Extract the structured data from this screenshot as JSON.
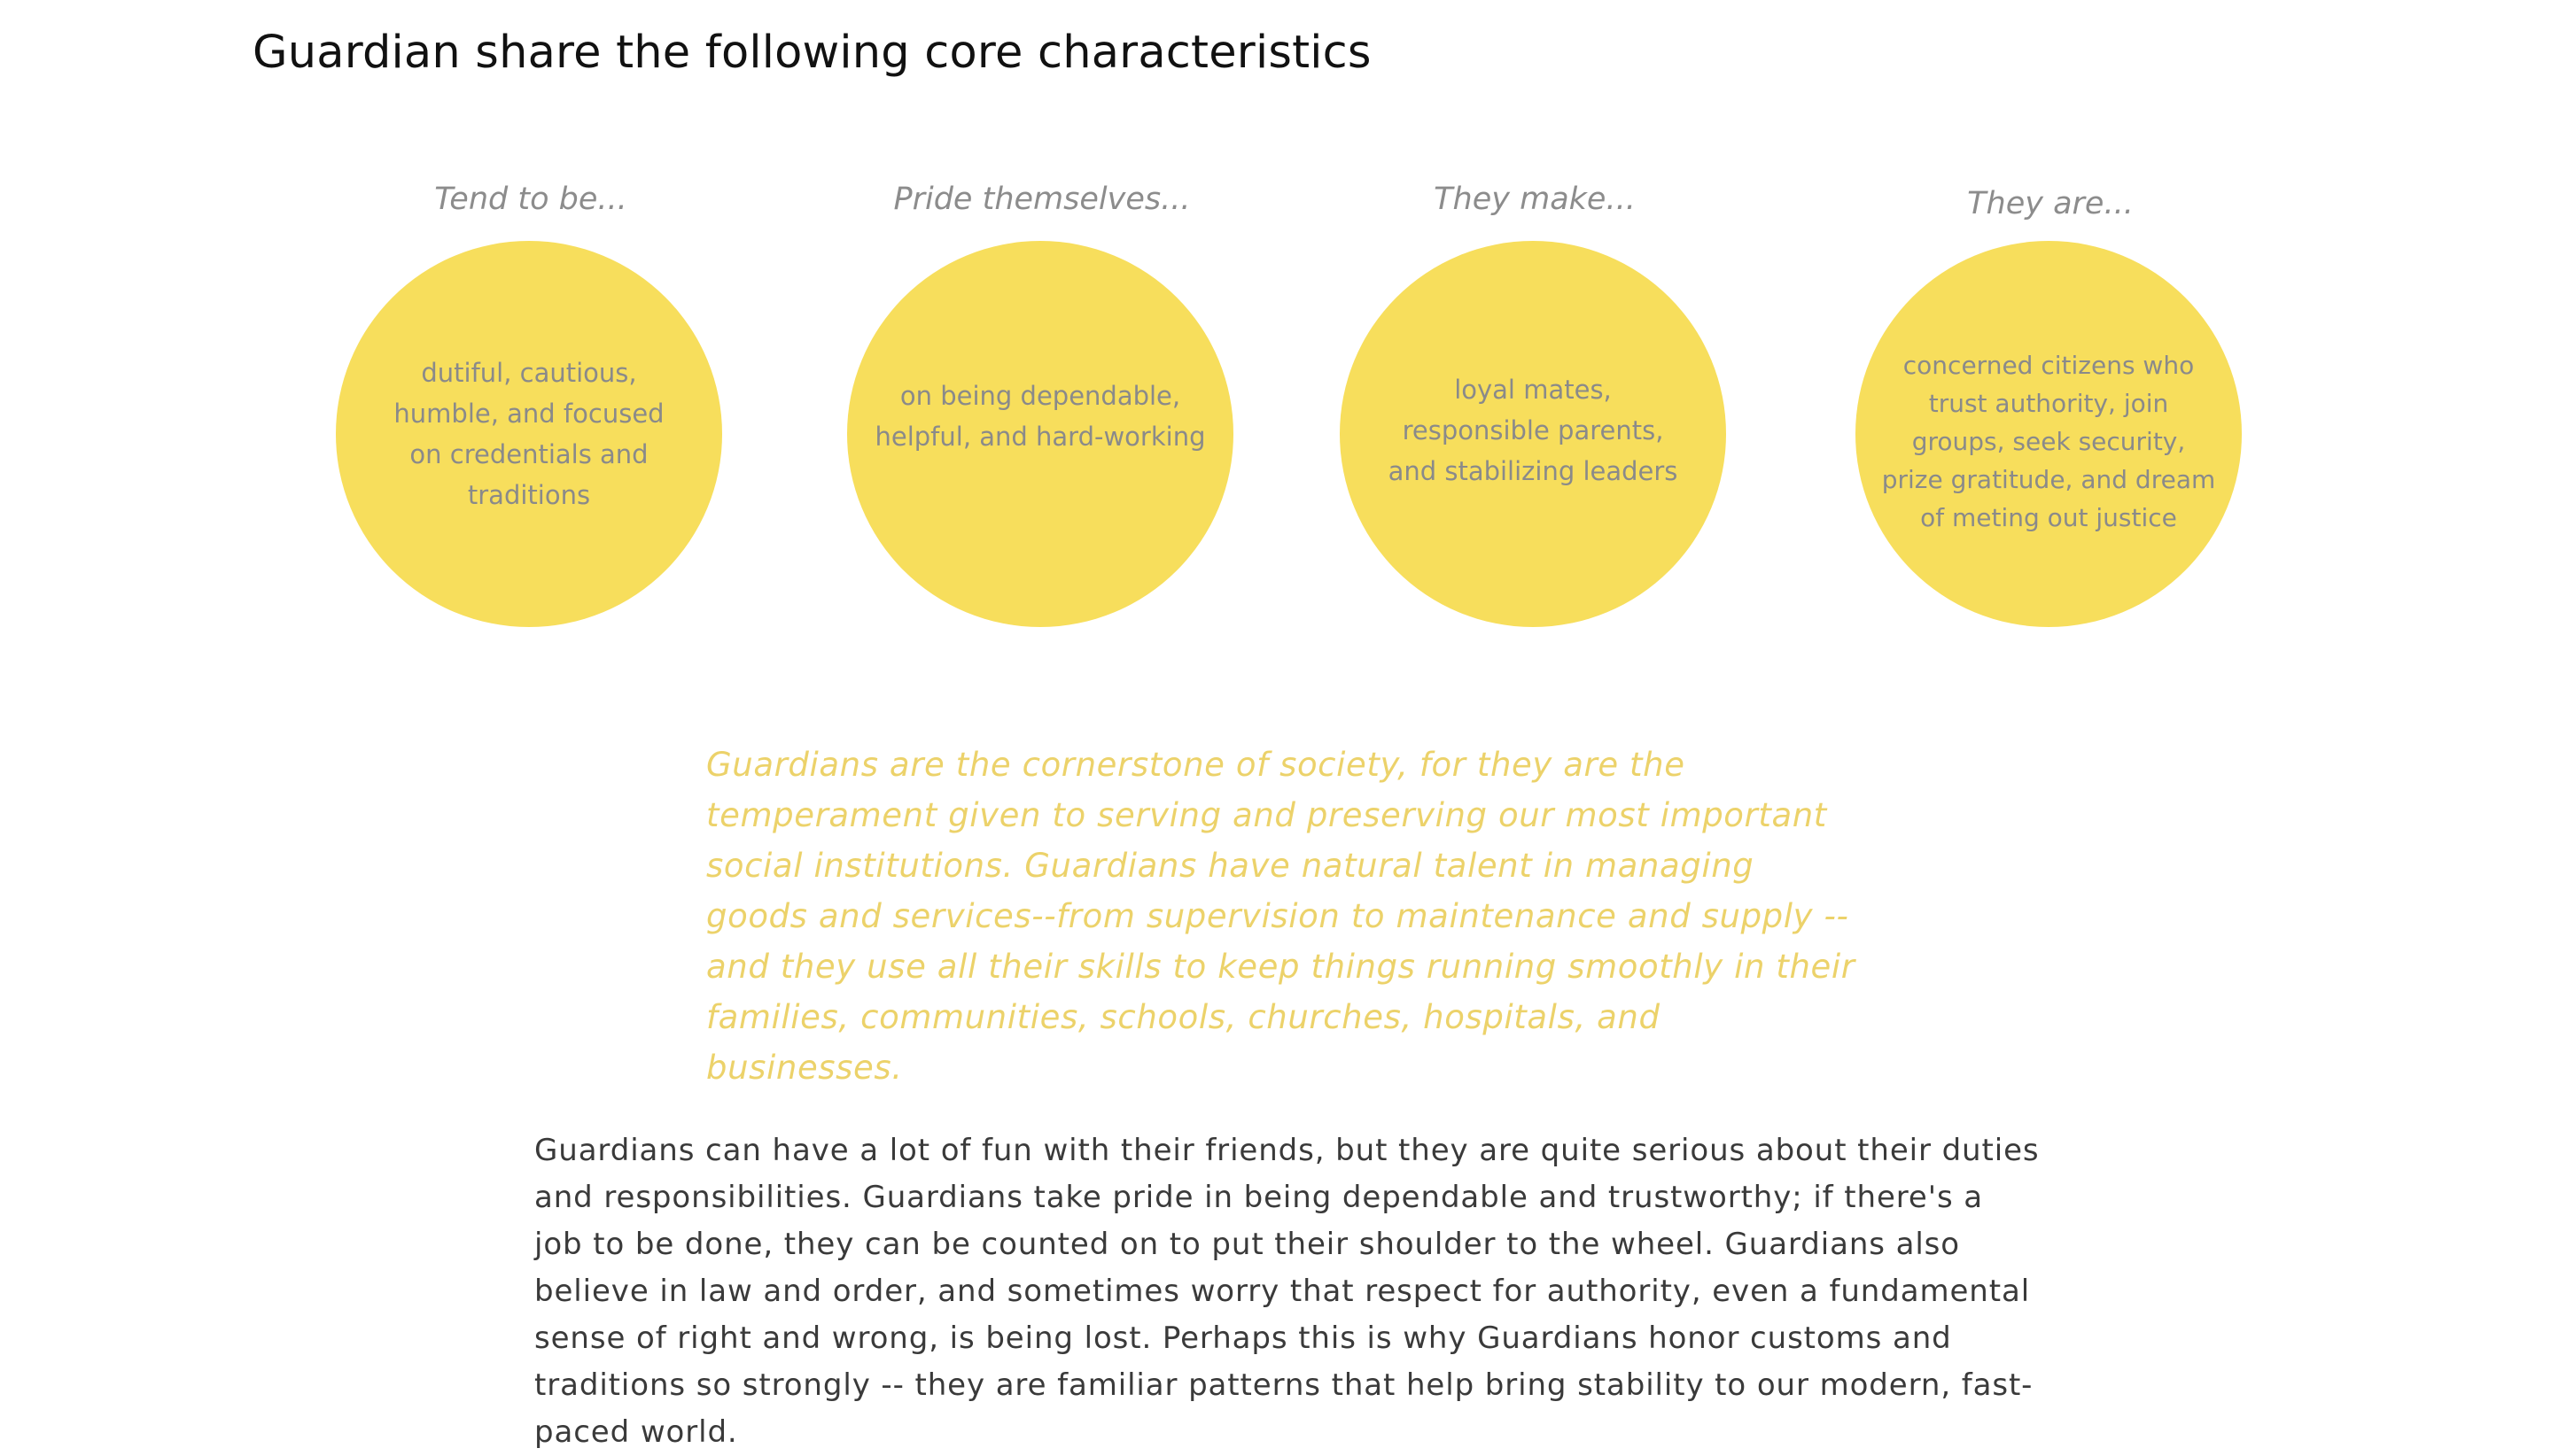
{
  "page": {
    "title": "Guardian share the following core characteristics"
  },
  "traits": [
    {
      "heading": "Tend to be...",
      "text": "dutiful, cautious, humble, and focused on credentials and traditions"
    },
    {
      "heading": "Pride themselves...",
      "text": "on being dependable, helpful, and hard-working"
    },
    {
      "heading": "They make...",
      "text": "loyal mates, responsible parents, and stabilizing leaders"
    },
    {
      "heading": "They are...",
      "text": "concerned citizens who trust authority, join groups, seek security, prize gratitude, and dream of meting out justice"
    }
  ],
  "quote": "Guardians are the cornerstone of society, for they are the temperament given to serving and preserving our most important social institutions. Guardians have natural talent in managing goods and services--from supervision to maintenance and supply -- and they use all their skills to keep things running smoothly in their families, communities, schools, churches, hospitals, and businesses.",
  "body": "Guardians can have a lot of fun with their friends, but they are quite serious about their duties and responsibilities. Guardians take pride in being dependable and trustworthy; if there's a job to be done, they can be counted on to put their shoulder to the wheel. Guardians also believe in law and order, and sometimes worry that respect for authority, even a fundamental sense of right and wrong, is being lost. Perhaps this is why Guardians honor customs and traditions so strongly -- they are familiar patterns that help bring stability to our modern, fast-paced world.",
  "colors": {
    "circle_fill": "#f7de5c",
    "quote_text": "#ecd26a",
    "heading_text": "#8c8c8c",
    "body_text": "#3a3a3a"
  }
}
